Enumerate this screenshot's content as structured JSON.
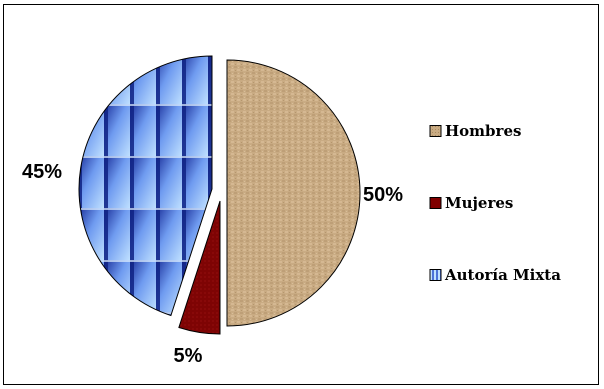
{
  "chart_data": {
    "type": "pie",
    "categories": [
      "Hombres",
      "Mujeres",
      "Autoría Mixta"
    ],
    "values": [
      50,
      5,
      45
    ],
    "labels": [
      "50%",
      "5%",
      "45%"
    ],
    "colors": [
      "#c8aa82",
      "#800000",
      "#99ccff"
    ],
    "exploded": true,
    "start_angle_deg": 0,
    "direction": "clockwise",
    "legend": {
      "position": "right",
      "items": [
        "Hombres",
        "Mujeres",
        "Autoría Mixta"
      ]
    }
  }
}
